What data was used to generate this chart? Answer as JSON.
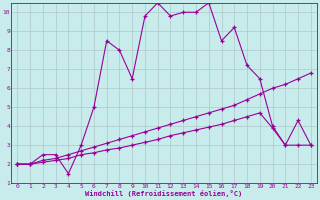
{
  "xlabel": "Windchill (Refroidissement éolien,°C)",
  "bg_color": "#c8ecec",
  "line_color": "#990099",
  "grid_color": "#b0c8c8",
  "xlim": [
    -0.5,
    23.5
  ],
  "ylim": [
    1,
    10.5
  ],
  "xticks": [
    0,
    1,
    2,
    3,
    4,
    5,
    6,
    7,
    8,
    9,
    10,
    11,
    12,
    13,
    14,
    15,
    16,
    17,
    18,
    19,
    20,
    21,
    22,
    23
  ],
  "yticks": [
    1,
    2,
    3,
    4,
    5,
    6,
    7,
    8,
    9,
    10
  ],
  "line1_x": [
    0,
    1,
    2,
    3,
    4,
    5,
    6,
    7,
    8,
    9,
    10,
    11,
    12,
    13,
    14,
    15,
    16,
    17,
    18,
    19,
    20,
    21,
    22,
    23
  ],
  "line1_y": [
    2.0,
    2.0,
    2.5,
    2.5,
    1.5,
    3.0,
    5.0,
    8.5,
    8.0,
    6.5,
    9.8,
    10.5,
    9.8,
    10.0,
    10.0,
    10.5,
    8.5,
    9.2,
    7.2,
    6.5,
    4.0,
    3.0,
    4.3,
    3.0
  ],
  "line2_x": [
    0,
    1,
    2,
    3,
    4,
    5,
    6,
    7,
    8,
    9,
    10,
    11,
    12,
    13,
    14,
    15,
    16,
    17,
    18,
    19,
    20,
    21,
    22,
    23
  ],
  "line2_y": [
    2.0,
    2.0,
    2.1,
    2.2,
    2.3,
    2.5,
    2.6,
    2.75,
    2.85,
    3.0,
    3.15,
    3.3,
    3.5,
    3.65,
    3.8,
    3.95,
    4.1,
    4.3,
    4.5,
    4.7,
    3.9,
    3.0,
    3.0,
    3.0
  ],
  "line3_x": [
    0,
    1,
    2,
    3,
    4,
    5,
    6,
    7,
    8,
    9,
    10,
    11,
    12,
    13,
    14,
    15,
    16,
    17,
    18,
    19,
    20,
    21,
    22,
    23
  ],
  "line3_y": [
    2.0,
    2.0,
    2.2,
    2.3,
    2.5,
    2.7,
    2.9,
    3.1,
    3.3,
    3.5,
    3.7,
    3.9,
    4.1,
    4.3,
    4.5,
    4.7,
    4.9,
    5.1,
    5.4,
    5.7,
    6.0,
    6.2,
    6.5,
    6.8
  ]
}
